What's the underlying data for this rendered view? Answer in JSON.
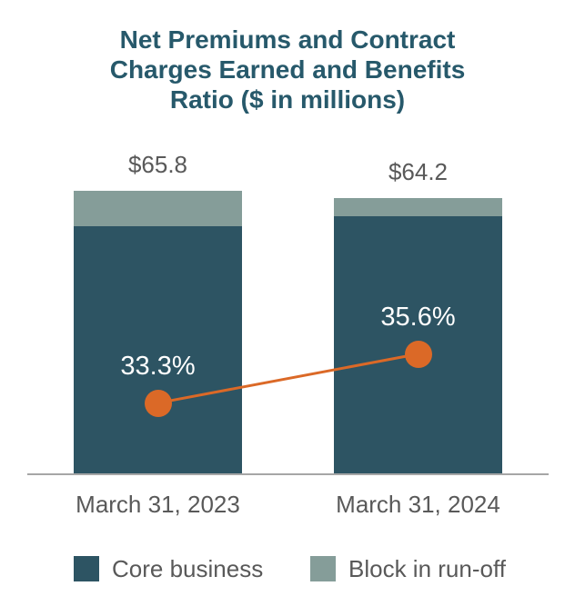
{
  "chart_data": {
    "type": "bar",
    "stacked": true,
    "title": "Net Premiums and Contract Charges Earned and Benefits Ratio ($ in millions)",
    "title_lines": [
      "Net Premiums and Contract",
      "Charges Earned and Benefits",
      "Ratio ($ in millions)"
    ],
    "categories": [
      "March 31, 2023",
      "March 31, 2024"
    ],
    "series": [
      {
        "name": "Core business",
        "values": [
          57.6,
          59.8
        ],
        "color": "#2d5463"
      },
      {
        "name": "Block in run-off",
        "values": [
          8.2,
          4.4
        ],
        "color": "#859d99"
      }
    ],
    "totals": [
      65.8,
      64.2
    ],
    "total_labels": [
      "$65.8",
      "$64.2"
    ],
    "line_series": {
      "name": "Benefits Ratio",
      "values": [
        33.3,
        35.6
      ],
      "labels": [
        "33.3%",
        "35.6%"
      ],
      "color": "#db6927",
      "implied_axis": [
        30,
        43.3
      ]
    },
    "value_axis": {
      "min": 0,
      "max": 66,
      "visible": false
    },
    "grid": false,
    "legend_position": "bottom",
    "colors": {
      "title": "#27596b",
      "label_gray": "#595959",
      "axis_line": "#a6a6a6",
      "ratio_label_text": "#ffffff",
      "background": "#ffffff"
    }
  }
}
